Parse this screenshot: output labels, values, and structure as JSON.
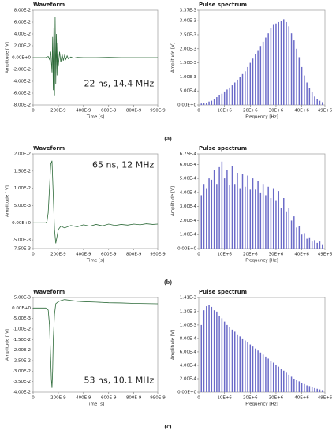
{
  "captions": [
    "(a)",
    "(b)",
    "(c)"
  ],
  "chart_data": [
    {
      "type": "line",
      "title": "Waveform",
      "xlabel": "Time [s]",
      "ylabel": "Amplitude [ V]",
      "color": "#2e6b3a",
      "annotation": "22 ns, 14.4 MHz",
      "annotation_color": "#8b3a1a",
      "x": [
        0,
        5e-08,
        1e-07,
        1.2e-07,
        1.3e-07,
        1.4e-07,
        1.5e-07,
        1.55e-07,
        1.6e-07,
        1.65e-07,
        1.7e-07,
        1.75e-07,
        1.8e-07,
        1.85e-07,
        1.9e-07,
        1.95e-07,
        2e-07,
        2.1e-07,
        2.2e-07,
        2.3e-07,
        2.4e-07,
        2.5e-07,
        2.6e-07,
        2.7e-07,
        2.8e-07,
        3e-07,
        3.2e-07,
        3.5e-07,
        4e-07,
        5e-07,
        6e-07,
        7e-07,
        8e-07,
        9e-07,
        9.9e-07
      ],
      "values": [
        0,
        0,
        0,
        0.002,
        -0.003,
        0.01,
        -0.025,
        0.035,
        -0.055,
        0.05,
        -0.065,
        0.068,
        -0.045,
        0.04,
        -0.03,
        0.025,
        -0.015,
        0.01,
        -0.008,
        0.006,
        -0.005,
        0.004,
        -0.003,
        0.003,
        -0.002,
        0.001,
        -0.001,
        0.0005,
        0,
        0,
        0.0005,
        0,
        0,
        0,
        0
      ],
      "xlim": [
        0,
        9.9e-07
      ],
      "ylim": [
        -0.08,
        0.08
      ],
      "xticks": [
        0,
        {
          "value": 2e-07,
          "label": "200E-9"
        },
        {
          "value": 4e-07,
          "label": "400E-9"
        },
        {
          "value": 6e-07,
          "label": "600E-9"
        },
        {
          "value": 8e-07,
          "label": "800E-9"
        },
        {
          "value": 9.9e-07,
          "label": "990E-9"
        }
      ],
      "yticks": [
        {
          "value": 0.08,
          "label": "8.00E-2"
        },
        {
          "value": 0.06,
          "label": "6.00E-2"
        },
        {
          "value": 0.04,
          "label": "4.00E-2"
        },
        {
          "value": 0.02,
          "label": "2.00E-2"
        },
        {
          "value": 0,
          "label": "0.00E+0"
        },
        {
          "value": -0.02,
          "label": "-2.00E-2"
        },
        {
          "value": -0.04,
          "label": "-4.00E-2"
        },
        {
          "value": -0.06,
          "label": "-6.00E-2"
        },
        {
          "value": -0.08,
          "label": "-8.00E-2"
        }
      ]
    },
    {
      "type": "bar",
      "title": "Pulse spectrum",
      "xlabel": "Frequency [Hz]",
      "ylabel": "Amplitude [V]",
      "color": "#6a6ac8",
      "x": [
        1000000.0,
        2000000.0,
        3000000.0,
        4000000.0,
        5000000.0,
        6000000.0,
        7000000.0,
        8000000.0,
        9000000.0,
        10000000.0,
        11000000.0,
        12000000.0,
        13000000.0,
        14000000.0,
        15000000.0,
        16000000.0,
        17000000.0,
        18000000.0,
        19000000.0,
        20000000.0,
        21000000.0,
        22000000.0,
        23000000.0,
        24000000.0,
        25000000.0,
        26000000.0,
        27000000.0,
        28000000.0,
        29000000.0,
        30000000.0,
        31000000.0,
        32000000.0,
        33000000.0,
        34000000.0,
        35000000.0,
        36000000.0,
        37000000.0,
        38000000.0,
        39000000.0,
        40000000.0,
        41000000.0,
        42000000.0,
        43000000.0,
        44000000.0,
        45000000.0,
        46000000.0,
        47000000.0,
        48000000.0
      ],
      "values": [
        5e-05,
        6e-05,
        8e-05,
        0.00012,
        0.00015,
        0.00022,
        0.00028,
        0.00035,
        0.0004,
        0.00048,
        0.00055,
        0.00062,
        0.0007,
        0.0008,
        0.0009,
        0.001,
        0.0011,
        0.0012,
        0.00135,
        0.0015,
        0.00165,
        0.0018,
        0.00195,
        0.0021,
        0.00225,
        0.0024,
        0.00255,
        0.00275,
        0.00285,
        0.0029,
        0.00295,
        0.003,
        0.00305,
        0.00295,
        0.0028,
        0.00255,
        0.0023,
        0.002,
        0.0017,
        0.00135,
        0.00105,
        0.0008,
        0.0006,
        0.00045,
        0.0003,
        0.0002,
        0.00015,
        0.0001
      ],
      "xlim": [
        0,
        49000000.0
      ],
      "ylim": [
        0,
        0.00337
      ],
      "xticks": [
        0,
        {
          "value": 10000000.0,
          "label": "10E+6"
        },
        {
          "value": 20000000.0,
          "label": "20E+6"
        },
        {
          "value": 30000000.0,
          "label": "30E+6"
        },
        {
          "value": 40000000.0,
          "label": "40E+6"
        },
        {
          "value": 49000000.0,
          "label": "49E+6"
        }
      ],
      "yticks": [
        {
          "value": 0.00337,
          "label": "3.37E-3"
        },
        {
          "value": 0.003,
          "label": "3.00E-3"
        },
        {
          "value": 0.0025,
          "label": "2.50E-3"
        },
        {
          "value": 0.002,
          "label": "2.00E-3"
        },
        {
          "value": 0.0015,
          "label": "1.50E-3"
        },
        {
          "value": 0.001,
          "label": "1.00E-3"
        },
        {
          "value": 0.0005,
          "label": "5.00E-4"
        },
        {
          "value": 0,
          "label": "0.00E+0"
        }
      ]
    },
    {
      "type": "line",
      "title": "Waveform",
      "xlabel": "Time [s]",
      "ylabel": "Amplitude [ V]",
      "color": "#2e6b3a",
      "annotation": "65 ns, 12 MHz",
      "annotation_color": "#8b3a1a",
      "x": [
        0,
        5e-08,
        1e-07,
        1.1e-07,
        1.2e-07,
        1.3e-07,
        1.4e-07,
        1.5e-07,
        1.6e-07,
        1.7e-07,
        1.8e-07,
        1.9e-07,
        2e-07,
        2.2e-07,
        2.5e-07,
        3e-07,
        3.5e-07,
        4e-07,
        4.5e-07,
        5e-07,
        5.5e-07,
        6e-07,
        6.5e-07,
        7e-07,
        7.5e-07,
        8e-07,
        8.5e-07,
        9e-07,
        9.5e-07,
        9.9e-07
      ],
      "values": [
        0,
        0,
        0,
        0.0003,
        0.003,
        0.01,
        0.017,
        0.018,
        0.008,
        -0.002,
        -0.006,
        -0.004,
        -0.002,
        -0.001,
        -0.0015,
        -0.0008,
        -0.0012,
        -0.0006,
        -0.001,
        -0.0005,
        -0.0009,
        -0.0004,
        -0.0008,
        -0.0005,
        -0.0007,
        -0.0004,
        -0.0006,
        -0.0003,
        -0.0005,
        -0.0004
      ],
      "xlim": [
        0,
        9.9e-07
      ],
      "ylim": [
        -0.0075,
        0.02
      ],
      "xticks": [
        0,
        {
          "value": 2e-07,
          "label": "200E-9"
        },
        {
          "value": 4e-07,
          "label": "400E-9"
        },
        {
          "value": 6e-07,
          "label": "600E-9"
        },
        {
          "value": 8e-07,
          "label": "800E-9"
        },
        {
          "value": 9.9e-07,
          "label": "990E-9"
        }
      ],
      "yticks": [
        {
          "value": 0.02,
          "label": "2.00E-2"
        },
        {
          "value": 0.015,
          "label": "1.50E-2"
        },
        {
          "value": 0.01,
          "label": "1.00E-2"
        },
        {
          "value": 0.005,
          "label": "5.00E-3"
        },
        {
          "value": 0,
          "label": "0.00E+0"
        },
        {
          "value": -0.005,
          "label": "-5.00E-3"
        },
        {
          "value": -0.0075,
          "label": "-7.50E-3"
        }
      ]
    },
    {
      "type": "bar",
      "title": "Pulse spectrum",
      "xlabel": "Frequency [Hz]",
      "ylabel": "Amplitude [V]",
      "color": "#6a6ac8",
      "x": [
        1000000.0,
        2000000.0,
        3000000.0,
        4000000.0,
        5000000.0,
        6000000.0,
        7000000.0,
        8000000.0,
        9000000.0,
        10000000.0,
        11000000.0,
        12000000.0,
        13000000.0,
        14000000.0,
        15000000.0,
        16000000.0,
        17000000.0,
        18000000.0,
        19000000.0,
        20000000.0,
        21000000.0,
        22000000.0,
        23000000.0,
        24000000.0,
        25000000.0,
        26000000.0,
        27000000.0,
        28000000.0,
        29000000.0,
        30000000.0,
        31000000.0,
        32000000.0,
        33000000.0,
        34000000.0,
        35000000.0,
        36000000.0,
        37000000.0,
        38000000.0,
        39000000.0,
        40000000.0,
        41000000.0,
        42000000.0,
        43000000.0,
        44000000.0,
        45000000.0,
        46000000.0,
        47000000.0,
        48000000.0
      ],
      "values": [
        0.00038,
        0.00046,
        0.00043,
        0.0005,
        0.00049,
        0.00056,
        0.00046,
        0.00058,
        0.00062,
        0.0005,
        0.00056,
        0.00045,
        0.00059,
        0.00046,
        0.00054,
        0.00043,
        0.00053,
        0.00044,
        0.00052,
        0.00042,
        0.0005,
        0.00042,
        0.00048,
        0.0004,
        0.00046,
        0.00038,
        0.00044,
        0.00036,
        0.00043,
        0.00034,
        0.00041,
        0.00029,
        0.00036,
        0.00026,
        0.00029,
        0.0002,
        0.00023,
        0.00015,
        0.00016,
        0.0001,
        0.00011,
        7e-05,
        8e-05,
        5e-05,
        6e-05,
        4e-05,
        5e-05,
        3e-05
      ],
      "xlim": [
        0,
        49000000.0
      ],
      "ylim": [
        0,
        0.000675
      ],
      "xticks": [
        0,
        {
          "value": 10000000.0,
          "label": "10E+6"
        },
        {
          "value": 20000000.0,
          "label": "20E+6"
        },
        {
          "value": 30000000.0,
          "label": "30E+6"
        },
        {
          "value": 40000000.0,
          "label": "40E+6"
        },
        {
          "value": 49000000.0,
          "label": "49E+6"
        }
      ],
      "yticks": [
        {
          "value": 0.000675,
          "label": "6.75E-4"
        },
        {
          "value": 0.0006,
          "label": "6.00E-4"
        },
        {
          "value": 0.0005,
          "label": "5.00E-4"
        },
        {
          "value": 0.0004,
          "label": "4.00E-4"
        },
        {
          "value": 0.0003,
          "label": "3.00E-4"
        },
        {
          "value": 0.0002,
          "label": "2.00E-4"
        },
        {
          "value": 0.0001,
          "label": "1.00E-4"
        },
        {
          "value": 0,
          "label": "0.00E+0"
        }
      ]
    },
    {
      "type": "line",
      "title": "Waveform",
      "xlabel": "Time [s]",
      "ylabel": "Amplitude [ V]",
      "color": "#2e6b3a",
      "annotation": "53 ns, 10.1 MHz",
      "annotation_color": "#8b3a1a",
      "x": [
        0,
        5e-08,
        1e-07,
        1.2e-07,
        1.3e-07,
        1.4e-07,
        1.45e-07,
        1.5e-07,
        1.55e-07,
        1.6e-07,
        1.7e-07,
        1.8e-07,
        2e-07,
        2.2e-07,
        2.5e-07,
        3e-07,
        3.5e-07,
        4e-07,
        5e-07,
        6e-07,
        7e-07,
        8e-07,
        9e-07,
        9.9e-07
      ],
      "values": [
        0,
        0,
        0,
        -0.001,
        -0.008,
        -0.025,
        -0.034,
        -0.038,
        -0.03,
        -0.015,
        -0.003,
        0.002,
        0.003,
        0.0035,
        0.004,
        0.0036,
        0.0032,
        0.003,
        0.0028,
        0.0025,
        0.0024,
        0.0022,
        0.0021,
        0.002
      ],
      "xlim": [
        0,
        9.9e-07
      ],
      "ylim": [
        -0.04,
        0.005
      ],
      "xticks": [
        0,
        {
          "value": 2e-07,
          "label": "200E-9"
        },
        {
          "value": 4e-07,
          "label": "400E-9"
        },
        {
          "value": 6e-07,
          "label": "600E-9"
        },
        {
          "value": 8e-07,
          "label": "800E-9"
        },
        {
          "value": 9.9e-07,
          "label": "990E-9"
        }
      ],
      "yticks": [
        {
          "value": 0.005,
          "label": "5.00E-3"
        },
        {
          "value": 0,
          "label": "0.00E+0"
        },
        {
          "value": -0.005,
          "label": "-5.00E-3"
        },
        {
          "value": -0.01,
          "label": "-1.00E-2"
        },
        {
          "value": -0.015,
          "label": "-1.50E-2"
        },
        {
          "value": -0.02,
          "label": "-2.00E-2"
        },
        {
          "value": -0.025,
          "label": "-2.50E-2"
        },
        {
          "value": -0.03,
          "label": "-3.00E-2"
        },
        {
          "value": -0.035,
          "label": "-3.50E-2"
        },
        {
          "value": -0.04,
          "label": "-4.00E-2"
        }
      ]
    },
    {
      "type": "bar",
      "title": "Pulse spectrum",
      "xlabel": "Frequency [Hz]",
      "ylabel": "Amplitude [V]",
      "color": "#6a6ac8",
      "x": [
        1000000.0,
        2000000.0,
        3000000.0,
        4000000.0,
        5000000.0,
        6000000.0,
        7000000.0,
        8000000.0,
        9000000.0,
        10000000.0,
        11000000.0,
        12000000.0,
        13000000.0,
        14000000.0,
        15000000.0,
        16000000.0,
        17000000.0,
        18000000.0,
        19000000.0,
        20000000.0,
        21000000.0,
        22000000.0,
        23000000.0,
        24000000.0,
        25000000.0,
        26000000.0,
        27000000.0,
        28000000.0,
        29000000.0,
        30000000.0,
        31000000.0,
        32000000.0,
        33000000.0,
        34000000.0,
        35000000.0,
        36000000.0,
        37000000.0,
        38000000.0,
        39000000.0,
        40000000.0,
        41000000.0,
        42000000.0,
        43000000.0,
        44000000.0,
        45000000.0,
        46000000.0,
        47000000.0,
        48000000.0
      ],
      "values": [
        0.001,
        0.00122,
        0.00128,
        0.0013,
        0.00127,
        0.00122,
        0.0012,
        0.00114,
        0.0011,
        0.00105,
        0.001,
        0.00097,
        0.00093,
        0.0009,
        0.00086,
        0.00083,
        0.0008,
        0.00077,
        0.00074,
        0.00071,
        0.00068,
        0.00065,
        0.00062,
        0.00059,
        0.00056,
        0.00053,
        0.0005,
        0.00047,
        0.00044,
        0.00041,
        0.00038,
        0.00035,
        0.00032,
        0.00029,
        0.00026,
        0.00023,
        0.0002,
        0.00018,
        0.00016,
        0.00014,
        0.00012,
        0.0001,
        9e-05,
        8e-05,
        6e-05,
        5e-05,
        4e-05,
        3e-05
      ],
      "xlim": [
        0,
        49000000.0
      ],
      "ylim": [
        0,
        0.00141
      ],
      "xticks": [
        0,
        {
          "value": 10000000.0,
          "label": "10E+6"
        },
        {
          "value": 20000000.0,
          "label": "20E+6"
        },
        {
          "value": 30000000.0,
          "label": "30E+6"
        },
        {
          "value": 40000000.0,
          "label": "40E+6"
        },
        {
          "value": 49000000.0,
          "label": "49E+6"
        }
      ],
      "yticks": [
        {
          "value": 0.00141,
          "label": "1.41E-3"
        },
        {
          "value": 0.0012,
          "label": "1.20E-3"
        },
        {
          "value": 0.001,
          "label": "1.00E-3"
        },
        {
          "value": 0.0008,
          "label": "8.00E-4"
        },
        {
          "value": 0.0006,
          "label": "6.00E-4"
        },
        {
          "value": 0.0004,
          "label": "4.00E-4"
        },
        {
          "value": 0.0002,
          "label": "2.00E-4"
        },
        {
          "value": 0,
          "label": "0.00E+0"
        }
      ]
    }
  ]
}
